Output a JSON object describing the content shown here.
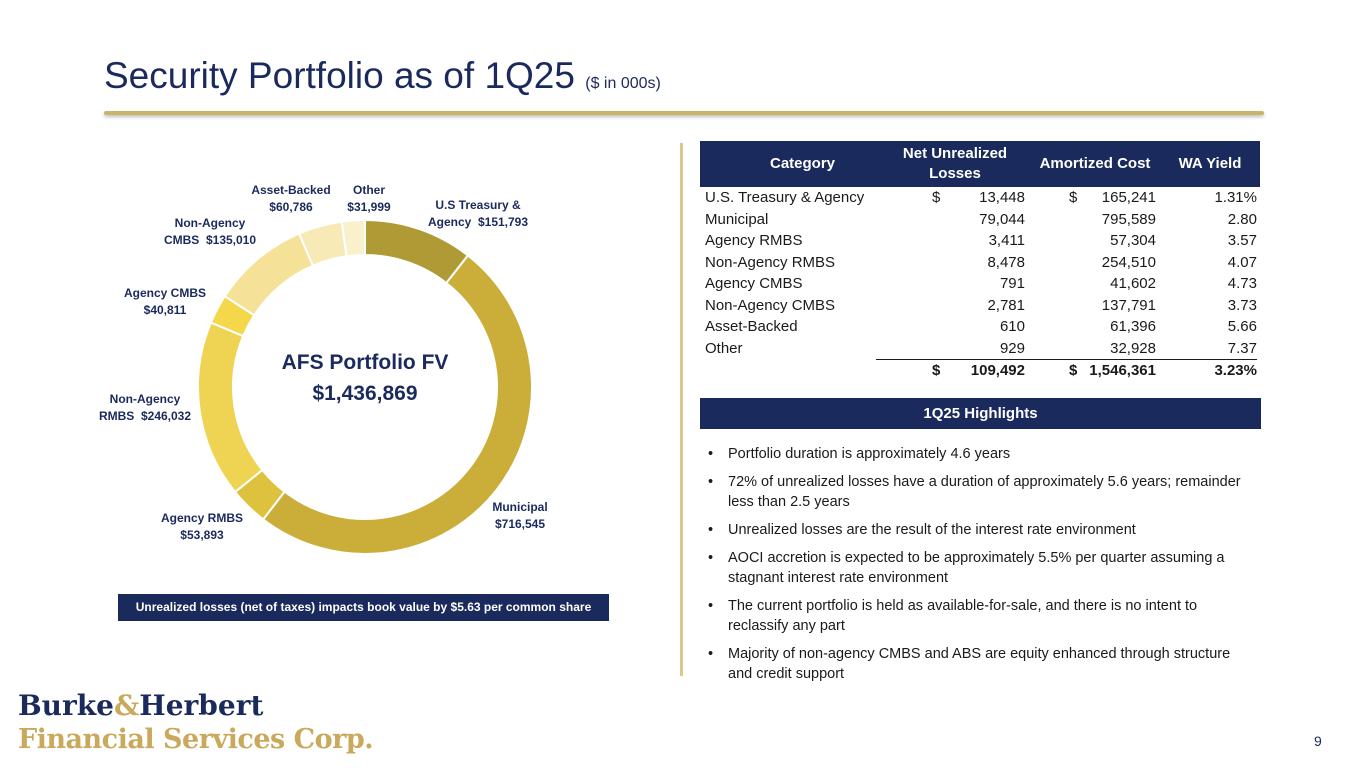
{
  "header": {
    "title": "Security Portfolio as of 1Q25",
    "subtitle": "($ in 000s)"
  },
  "chart_data": {
    "type": "pie",
    "variant": "donut",
    "center_title": "AFS Portfolio FV",
    "center_value": "$1,436,869",
    "total": 1436869,
    "categories": [
      "U.S Treasury & Agency",
      "Municipal",
      "Agency RMBS",
      "Non-Agency RMBS",
      "Agency CMBS",
      "Non-Agency CMBS",
      "Asset-Backed",
      "Other"
    ],
    "values": [
      151793,
      716545,
      53893,
      246032,
      40811,
      135010,
      60786,
      31999
    ],
    "labels": [
      [
        "U.S Treasury &",
        "Agency  $151,793"
      ],
      [
        "Municipal",
        "$716,545"
      ],
      [
        "Agency RMBS",
        "$53,893"
      ],
      [
        "Non-Agency",
        "RMBS  $246,032"
      ],
      [
        "Agency CMBS",
        "$40,811"
      ],
      [
        "Non-Agency",
        "CMBS  $135,010"
      ],
      [
        "Asset-Backed",
        "$60,786"
      ],
      [
        "Other",
        "$31,999"
      ]
    ],
    "colors": [
      "#b09a35",
      "#cbae3a",
      "#dec23e",
      "#efd352",
      "#f4d74a",
      "#f5e197",
      "#f8eab6",
      "#faf0cc"
    ]
  },
  "impact_note": "Unrealized losses (net of taxes) impacts book value by $5.63 per common share",
  "table": {
    "headers": {
      "category": "Category",
      "nul_line1": "Net Unrealized",
      "nul_line2": "Losses",
      "amortized_cost": "Amortized Cost",
      "wa_yield": "WA Yield"
    },
    "rows": [
      {
        "category": "U.S. Treasury & Agency",
        "d1": "$",
        "nul": "13,448",
        "d2": "$",
        "ac": "165,241",
        "wy": "1.31%"
      },
      {
        "category": "Municipal",
        "d1": "",
        "nul": "79,044",
        "d2": "",
        "ac": "795,589",
        "wy": "2.80"
      },
      {
        "category": "Agency RMBS",
        "d1": "",
        "nul": "3,411",
        "d2": "",
        "ac": "57,304",
        "wy": "3.57"
      },
      {
        "category": "Non-Agency RMBS",
        "d1": "",
        "nul": "8,478",
        "d2": "",
        "ac": "254,510",
        "wy": "4.07"
      },
      {
        "category": "Agency CMBS",
        "d1": "",
        "nul": "791",
        "d2": "",
        "ac": "41,602",
        "wy": "4.73"
      },
      {
        "category": "Non-Agency CMBS",
        "d1": "",
        "nul": "2,781",
        "d2": "",
        "ac": "137,791",
        "wy": "3.73"
      },
      {
        "category": "Asset-Backed",
        "d1": "",
        "nul": "610",
        "d2": "",
        "ac": "61,396",
        "wy": "5.66"
      },
      {
        "category": "Other",
        "d1": "",
        "nul": "929",
        "d2": "",
        "ac": "32,928",
        "wy": "7.37"
      }
    ],
    "total": {
      "d1": "$",
      "nul": "109,492",
      "d2": "$",
      "ac": "1,546,361",
      "wy": "3.23%"
    }
  },
  "highlights": {
    "title": "1Q25 Highlights",
    "bullet_char": "•",
    "items": [
      "Portfolio duration is approximately 4.6 years",
      "72% of unrealized losses have a duration of approximately 5.6 years; remainder less than 2.5 years",
      "Unrealized losses are the result of the interest rate environment",
      "AOCI accretion is expected to be approximately 5.5% per quarter assuming a stagnant interest rate environment",
      "The current portfolio is held as available-for-sale, and there is no intent to reclassify any part",
      "Majority of non-agency CMBS and ABS are equity enhanced through structure and credit support"
    ]
  },
  "logo": {
    "line1_a": "Burke",
    "line1_amp": "&",
    "line1_b": "Herbert",
    "line2": "Financial Services Corp."
  },
  "page_number": "9"
}
